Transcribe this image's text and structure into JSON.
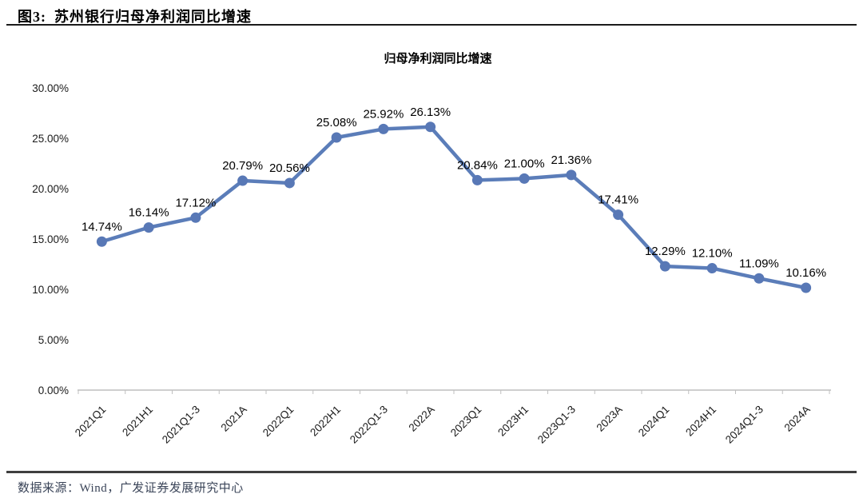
{
  "header": {
    "figure_label": "图3:",
    "title": "苏州银行归母净利润同比增速"
  },
  "footer": {
    "text": "数据来源：Wind，广发证券发展研究中心"
  },
  "chart_data": {
    "type": "line",
    "title": "归母净利润同比增速",
    "xlabel": "",
    "ylabel": "",
    "categories": [
      "2021Q1",
      "2021H1",
      "2021Q1-3",
      "2021A",
      "2022Q1",
      "2022H1",
      "2022Q1-3",
      "2022A",
      "2023Q1",
      "2023H1",
      "2023Q1-3",
      "2023A",
      "2024Q1",
      "2024H1",
      "2024Q1-3",
      "2024A"
    ],
    "values": [
      14.74,
      16.14,
      17.12,
      20.79,
      20.56,
      25.08,
      25.92,
      26.13,
      20.84,
      21.0,
      21.36,
      17.41,
      12.29,
      12.1,
      11.09,
      10.16
    ],
    "point_labels": [
      "14.74%",
      "16.14%",
      "17.12%",
      "20.79%",
      "20.56%",
      "25.08%",
      "25.92%",
      "26.13%",
      "20.84%",
      "21.00%",
      "21.36%",
      "17.41%",
      "12.29%",
      "12.10%",
      "11.09%",
      "10.16%"
    ],
    "y_ticks": [
      "30.00%",
      "25.00%",
      "20.00%",
      "15.00%",
      "10.00%",
      "5.00%",
      "0.00%"
    ],
    "ylim": [
      0,
      30
    ],
    "ytick_step": 5,
    "grid": false,
    "legend_position": "none",
    "line_color": "#5B7DB9",
    "marker": "circle",
    "marker_color": "#5878B6",
    "axis_color": "#BFBFBF",
    "label_color": "#000000"
  }
}
